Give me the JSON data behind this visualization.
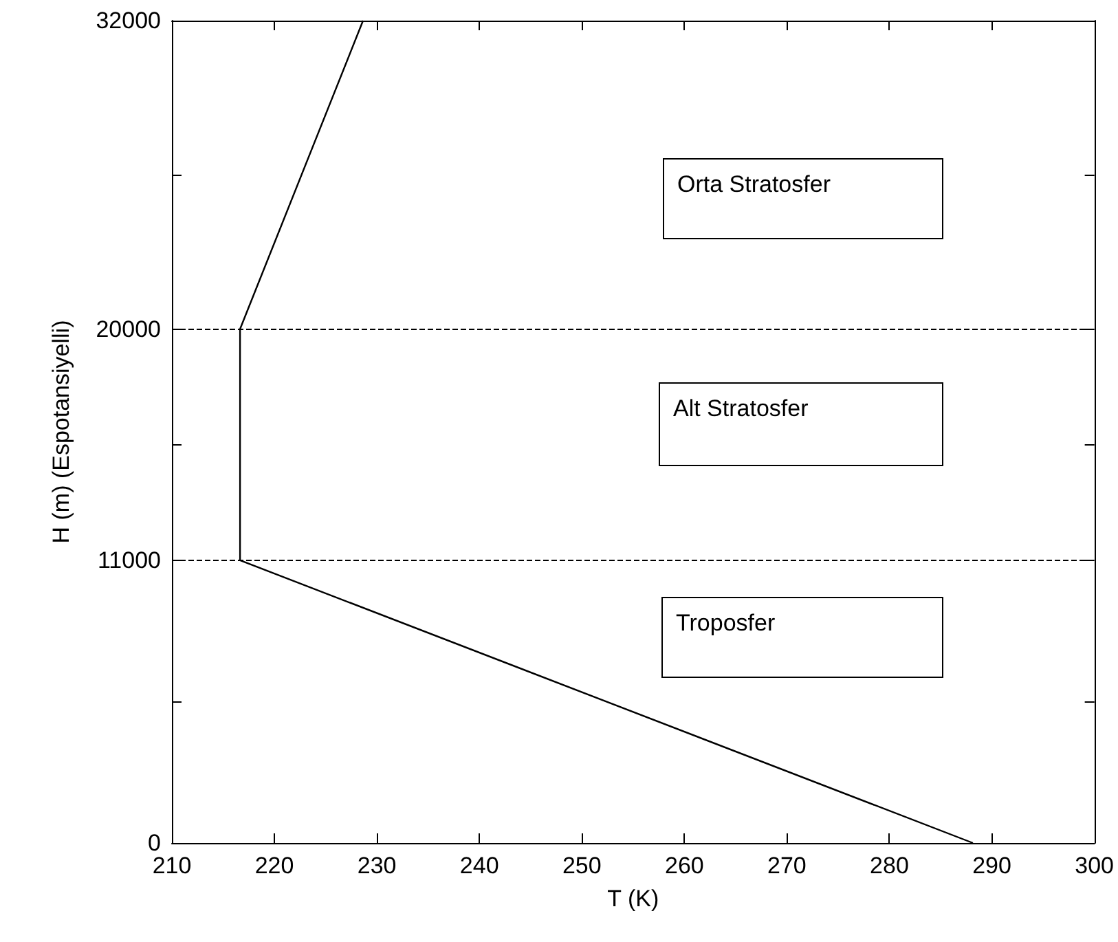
{
  "chart_data": {
    "type": "line",
    "xlabel": "T (K)",
    "ylabel": "H (m) (Espotansiyelli)",
    "x": [
      288.15,
      216.65,
      216.65,
      228.65
    ],
    "series": [
      {
        "color": "#000000",
        "values": [
          0,
          11000,
          20000,
          32000
        ]
      }
    ],
    "xlim": [
      210,
      300
    ],
    "xticks": [
      210,
      220,
      230,
      240,
      250,
      260,
      270,
      280,
      290,
      300
    ],
    "ylim": [
      0,
      32000
    ],
    "yticks": [
      0,
      {
        "value": 5500,
        "label": null
      },
      11000,
      {
        "value": 15500,
        "label": null
      },
      20000,
      {
        "value": 26000,
        "label": null
      },
      32000
    ],
    "ref_lines": [
      {
        "axis": "y",
        "value": 11000,
        "color": "#000000",
        "line_style": "dashed"
      },
      {
        "axis": "y",
        "value": 20000,
        "color": "#000000",
        "line_style": "dashed"
      }
    ],
    "annotations": [
      "Orta Stratosfer",
      "Alt Stratosfer",
      "Troposfer"
    ],
    "marker": "none",
    "line_style": "solid",
    "grid": false
  }
}
